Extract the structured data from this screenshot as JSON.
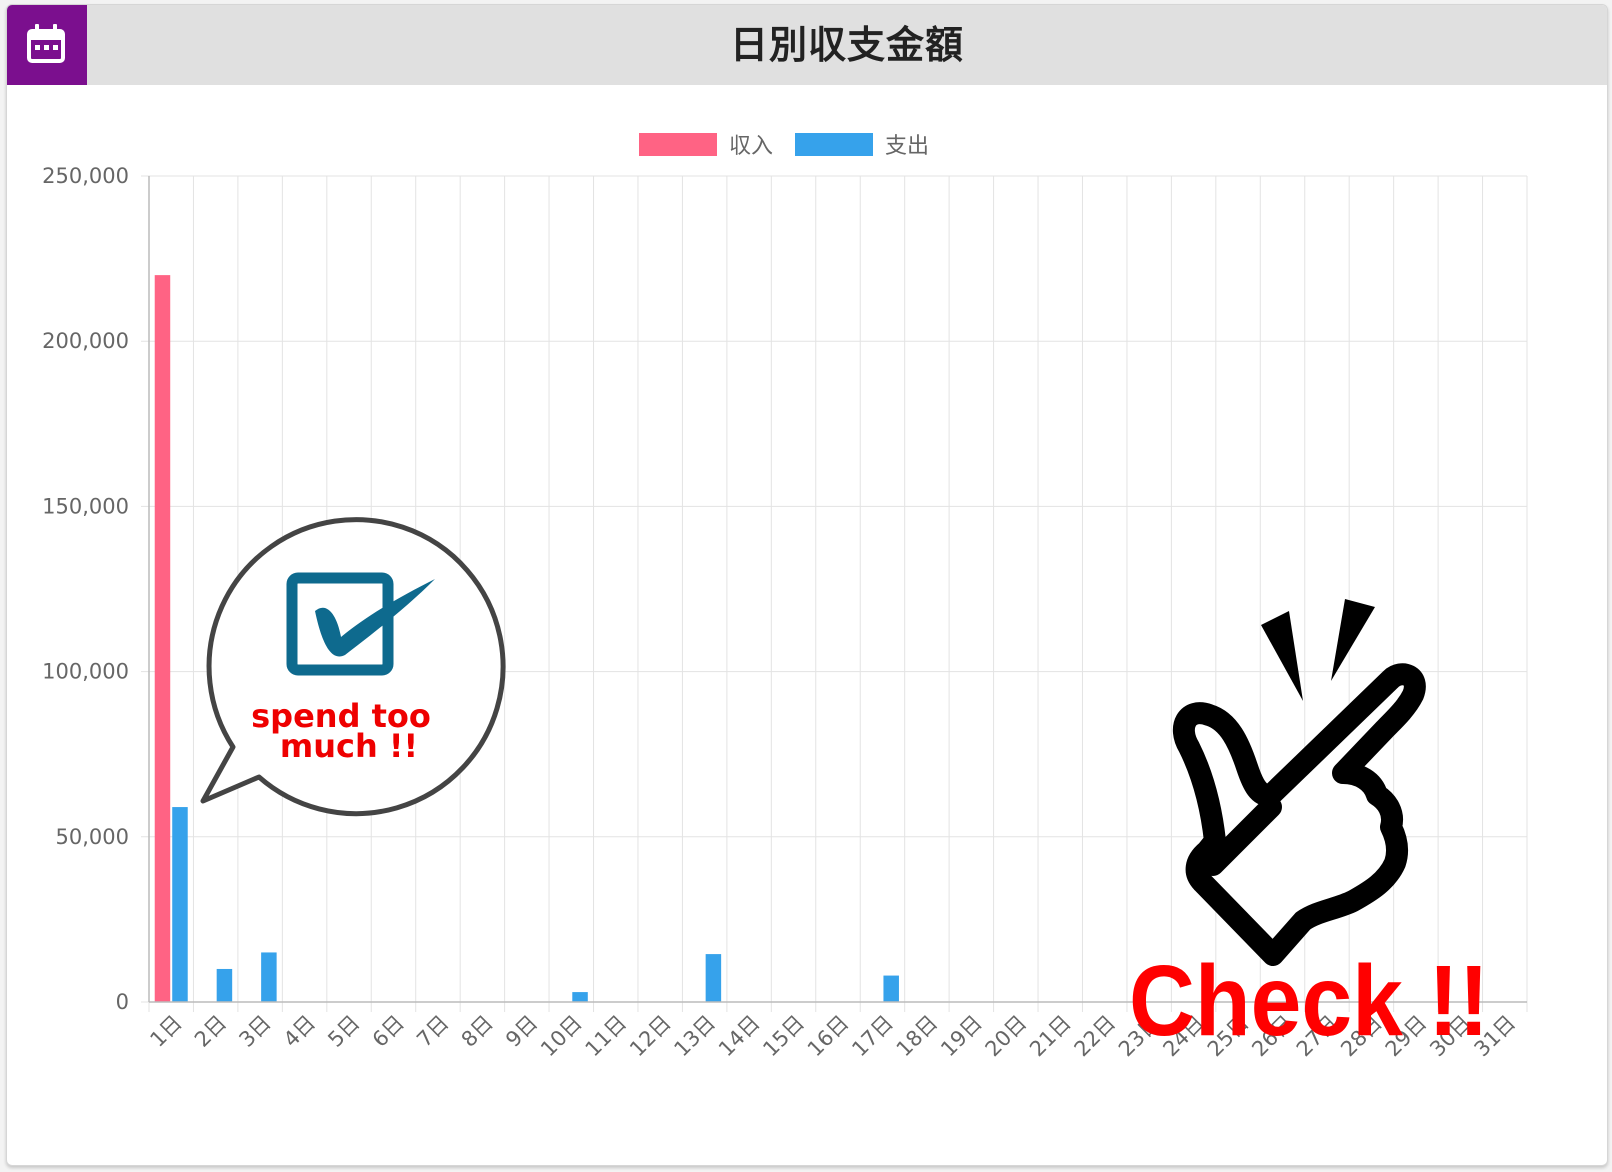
{
  "header": {
    "title": "日別収支金額",
    "icon": "calendar-icon",
    "icon_bg": "#7b0f8e"
  },
  "chart_data": {
    "type": "bar",
    "title": "日別収支金額",
    "categories": [
      "1日",
      "2日",
      "3日",
      "4日",
      "5日",
      "6日",
      "7日",
      "8日",
      "9日",
      "10日",
      "11日",
      "12日",
      "13日",
      "14日",
      "15日",
      "16日",
      "17日",
      "18日",
      "19日",
      "20日",
      "21日",
      "22日",
      "23日",
      "24日",
      "25日",
      "26日",
      "27日",
      "28日",
      "29日",
      "30日",
      "31日"
    ],
    "series": [
      {
        "name": "収入",
        "color": "#ff6384",
        "values": [
          220000,
          0,
          0,
          0,
          0,
          0,
          0,
          0,
          0,
          0,
          0,
          0,
          0,
          0,
          0,
          0,
          0,
          0,
          0,
          0,
          0,
          0,
          0,
          0,
          0,
          0,
          0,
          0,
          0,
          0,
          0
        ]
      },
      {
        "name": "支出",
        "color": "#36a2eb",
        "values": [
          59000,
          10000,
          15000,
          0,
          0,
          0,
          0,
          0,
          0,
          3000,
          0,
          0,
          14500,
          0,
          0,
          0,
          8000,
          0,
          0,
          0,
          0,
          0,
          0,
          0,
          0,
          0,
          0,
          0,
          0,
          0,
          0
        ]
      }
    ],
    "ylim": [
      0,
      250000
    ],
    "yticks": [
      0,
      50000,
      100000,
      150000,
      200000,
      250000
    ],
    "ytick_labels": [
      "0",
      "50,000",
      "100,000",
      "150,000",
      "200,000",
      "250,000"
    ],
    "legend_position": "top-center",
    "grid": true
  },
  "annotations": {
    "speech_bubble_text": [
      "spend too",
      "much !!"
    ],
    "check_text": "Check !!",
    "bubble_icon": "checkbox-icon",
    "hand_icon": "finger-snap-icon"
  }
}
